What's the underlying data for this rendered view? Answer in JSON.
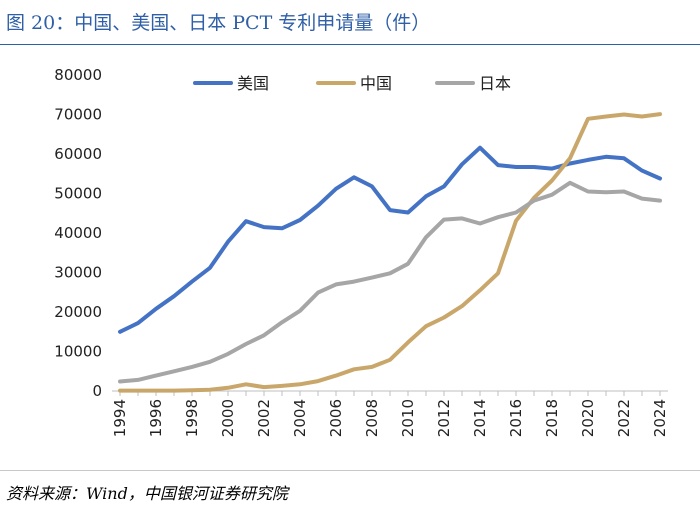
{
  "title": "图 20：中国、美国、日本 PCT 专利申请量（件）",
  "source": "资料来源：Wind，中国银河证券研究院",
  "chart_data": {
    "type": "line",
    "title": "图 20：中国、美国、日本 PCT 专利申请量（件）",
    "xlabel": "",
    "ylabel": "",
    "ylim": [
      0,
      80000
    ],
    "yticks": [
      0,
      10000,
      20000,
      30000,
      40000,
      50000,
      60000,
      70000,
      80000
    ],
    "xtick_labels": [
      "1994",
      "1996",
      "1998",
      "2000",
      "2002",
      "2004",
      "2006",
      "2008",
      "2010",
      "2012",
      "2014",
      "2016",
      "2018",
      "2020",
      "2022",
      "2024"
    ],
    "x": [
      1994,
      1995,
      1996,
      1997,
      1998,
      1999,
      2000,
      2001,
      2002,
      2003,
      2004,
      2005,
      2006,
      2007,
      2008,
      2009,
      2010,
      2011,
      2012,
      2013,
      2014,
      2015,
      2016,
      2017,
      2018,
      2019,
      2020,
      2021,
      2022,
      2023,
      2024
    ],
    "legend_position": "top",
    "series": [
      {
        "name": "美国",
        "color": "#4472c4",
        "values": [
          15000,
          17200,
          20800,
          24000,
          27700,
          31200,
          37800,
          43000,
          41500,
          41200,
          43300,
          46900,
          51200,
          54100,
          51800,
          45800,
          45200,
          49300,
          51800,
          57400,
          61600,
          57200,
          56700,
          56700,
          56300,
          57600,
          58500,
          59300,
          58900,
          55800,
          53800
        ]
      },
      {
        "name": "中国",
        "color": "#c9a76b",
        "values": [
          100,
          100,
          100,
          100,
          200,
          300,
          800,
          1700,
          1000,
          1300,
          1700,
          2500,
          3900,
          5500,
          6100,
          7900,
          12300,
          16400,
          18600,
          21500,
          25500,
          29800,
          43100,
          48900,
          53300,
          58900,
          68900,
          69500,
          70000,
          69500,
          70100
        ]
      },
      {
        "name": "日本",
        "color": "#a6a6a6",
        "values": [
          2400,
          2800,
          3900,
          5000,
          6100,
          7400,
          9400,
          11900,
          14100,
          17400,
          20300,
          24900,
          27000,
          27700,
          28700,
          29800,
          32200,
          38900,
          43400,
          43700,
          42400,
          44000,
          45200,
          48200,
          49700,
          52700,
          50500,
          50300,
          50500,
          48700,
          48200
        ]
      }
    ]
  }
}
